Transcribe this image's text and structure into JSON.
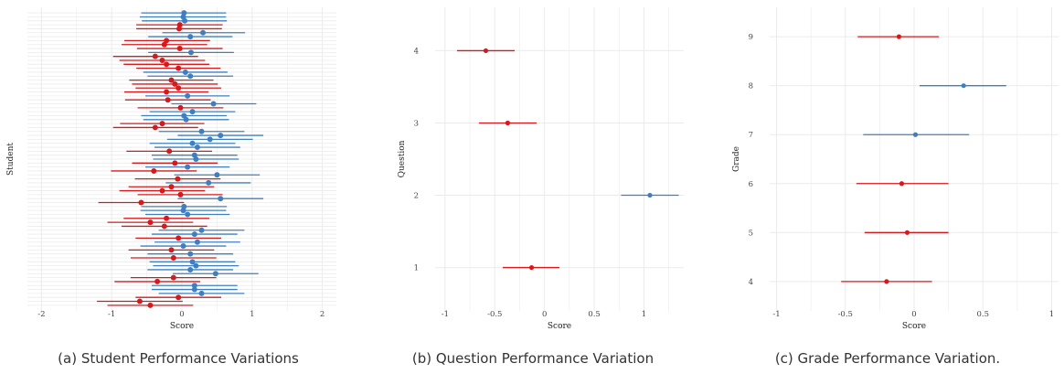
{
  "figures": [
    {
      "id": "a",
      "caption": "(a) Student Performance Variations"
    },
    {
      "id": "b",
      "caption": "(b) Question Performance Variation"
    },
    {
      "id": "c",
      "caption": "(c) Grade Performance Variation."
    }
  ],
  "chart_data": [
    {
      "type": "scatter",
      "subtype": "forest-plot",
      "xlabel": "Score",
      "ylabel": "Student",
      "xlim": [
        -2.2,
        2.2
      ],
      "xticks": [
        "-2",
        "-1",
        "0",
        "1",
        "2"
      ],
      "grid": true,
      "legend": "none",
      "colors": {
        "positive": "#3f7fbf",
        "negative": "#d7191c"
      },
      "points": [
        {
          "y": 1,
          "est": 0.03,
          "lo": -0.58,
          "hi": 0.63
        },
        {
          "y": 2,
          "est": 0.02,
          "lo": -0.6,
          "hi": 0.63
        },
        {
          "y": 3,
          "est": 0.04,
          "lo": -0.57,
          "hi": 0.64
        },
        {
          "y": 4,
          "est": -0.03,
          "lo": -0.65,
          "hi": 0.58
        },
        {
          "y": 5,
          "est": -0.04,
          "lo": -0.65,
          "hi": 0.57
        },
        {
          "y": 6,
          "est": 0.3,
          "lo": -0.28,
          "hi": 0.9
        },
        {
          "y": 7,
          "est": 0.12,
          "lo": -0.48,
          "hi": 0.72
        },
        {
          "y": 8,
          "est": -0.22,
          "lo": -0.82,
          "hi": 0.4
        },
        {
          "y": 9,
          "est": -0.25,
          "lo": -0.86,
          "hi": 0.36
        },
        {
          "y": 10,
          "est": -0.03,
          "lo": -0.64,
          "hi": 0.58
        },
        {
          "y": 11,
          "est": 0.13,
          "lo": -0.48,
          "hi": 0.74
        },
        {
          "y": 12,
          "est": -0.38,
          "lo": -0.98,
          "hi": 0.23
        },
        {
          "y": 13,
          "est": -0.28,
          "lo": -0.89,
          "hi": 0.33
        },
        {
          "y": 14,
          "est": -0.22,
          "lo": -0.83,
          "hi": 0.39
        },
        {
          "y": 15,
          "est": -0.05,
          "lo": -0.65,
          "hi": 0.55
        },
        {
          "y": 16,
          "est": 0.05,
          "lo": -0.55,
          "hi": 0.65
        },
        {
          "y": 17,
          "est": 0.12,
          "lo": -0.49,
          "hi": 0.73
        },
        {
          "y": 18,
          "est": -0.15,
          "lo": -0.75,
          "hi": 0.45
        },
        {
          "y": 19,
          "est": -0.1,
          "lo": -0.71,
          "hi": 0.51
        },
        {
          "y": 20,
          "est": -0.05,
          "lo": -0.66,
          "hi": 0.56
        },
        {
          "y": 21,
          "est": -0.22,
          "lo": -0.82,
          "hi": 0.38
        },
        {
          "y": 22,
          "est": 0.08,
          "lo": -0.52,
          "hi": 0.68
        },
        {
          "y": 23,
          "est": -0.2,
          "lo": -0.81,
          "hi": 0.41
        },
        {
          "y": 24,
          "est": 0.45,
          "lo": -0.15,
          "hi": 1.06
        },
        {
          "y": 25,
          "est": -0.02,
          "lo": -0.63,
          "hi": 0.59
        },
        {
          "y": 26,
          "est": 0.15,
          "lo": -0.46,
          "hi": 0.76
        },
        {
          "y": 27,
          "est": 0.03,
          "lo": -0.58,
          "hi": 0.64
        },
        {
          "y": 28,
          "est": 0.06,
          "lo": -0.55,
          "hi": 0.67
        },
        {
          "y": 29,
          "est": -0.28,
          "lo": -0.88,
          "hi": 0.32
        },
        {
          "y": 30,
          "est": -0.38,
          "lo": -0.98,
          "hi": 0.23
        },
        {
          "y": 31,
          "est": 0.28,
          "lo": -0.33,
          "hi": 0.89
        },
        {
          "y": 32,
          "est": 0.55,
          "lo": -0.06,
          "hi": 1.16
        },
        {
          "y": 33,
          "est": 0.4,
          "lo": -0.21,
          "hi": 1.01
        },
        {
          "y": 34,
          "est": 0.15,
          "lo": -0.46,
          "hi": 0.76
        },
        {
          "y": 35,
          "est": 0.22,
          "lo": -0.39,
          "hi": 0.83
        },
        {
          "y": 36,
          "est": -0.18,
          "lo": -0.79,
          "hi": 0.43
        },
        {
          "y": 37,
          "est": 0.18,
          "lo": -0.43,
          "hi": 0.79
        },
        {
          "y": 38,
          "est": 0.2,
          "lo": -0.41,
          "hi": 0.81
        },
        {
          "y": 39,
          "est": -0.1,
          "lo": -0.71,
          "hi": 0.51
        },
        {
          "y": 40,
          "est": 0.08,
          "lo": -0.52,
          "hi": 0.68
        },
        {
          "y": 41,
          "est": -0.4,
          "lo": -1.01,
          "hi": 0.21
        },
        {
          "y": 42,
          "est": 0.5,
          "lo": -0.11,
          "hi": 1.11
        },
        {
          "y": 43,
          "est": -0.06,
          "lo": -0.67,
          "hi": 0.55
        },
        {
          "y": 44,
          "est": 0.38,
          "lo": -0.23,
          "hi": 0.98
        },
        {
          "y": 45,
          "est": -0.15,
          "lo": -0.76,
          "hi": 0.46
        },
        {
          "y": 46,
          "est": -0.28,
          "lo": -0.89,
          "hi": 0.33
        },
        {
          "y": 47,
          "est": -0.02,
          "lo": -0.63,
          "hi": 0.58
        },
        {
          "y": 48,
          "est": 0.55,
          "lo": -0.06,
          "hi": 1.16
        },
        {
          "y": 49,
          "est": -0.58,
          "lo": -1.19,
          "hi": 0.03
        },
        {
          "y": 50,
          "est": 0.03,
          "lo": -0.58,
          "hi": 0.64
        },
        {
          "y": 51,
          "est": 0.02,
          "lo": -0.59,
          "hi": 0.63
        },
        {
          "y": 52,
          "est": 0.08,
          "lo": -0.52,
          "hi": 0.68
        },
        {
          "y": 53,
          "est": -0.22,
          "lo": -0.83,
          "hi": 0.39
        },
        {
          "y": 54,
          "est": -0.45,
          "lo": -1.06,
          "hi": 0.16
        },
        {
          "y": 55,
          "est": -0.25,
          "lo": -0.86,
          "hi": 0.36
        },
        {
          "y": 56,
          "est": 0.28,
          "lo": -0.33,
          "hi": 0.89
        },
        {
          "y": 57,
          "est": 0.18,
          "lo": -0.43,
          "hi": 0.79
        },
        {
          "y": 58,
          "est": -0.05,
          "lo": -0.66,
          "hi": 0.56
        },
        {
          "y": 59,
          "est": 0.22,
          "lo": -0.39,
          "hi": 0.83
        },
        {
          "y": 60,
          "est": 0.02,
          "lo": -0.59,
          "hi": 0.63
        },
        {
          "y": 61,
          "est": -0.15,
          "lo": -0.76,
          "hi": 0.46
        },
        {
          "y": 62,
          "est": 0.12,
          "lo": -0.49,
          "hi": 0.73
        },
        {
          "y": 63,
          "est": -0.12,
          "lo": -0.73,
          "hi": 0.49
        },
        {
          "y": 64,
          "est": 0.15,
          "lo": -0.46,
          "hi": 0.76
        },
        {
          "y": 65,
          "est": 0.2,
          "lo": -0.41,
          "hi": 0.81
        },
        {
          "y": 66,
          "est": 0.12,
          "lo": -0.49,
          "hi": 0.73
        },
        {
          "y": 67,
          "est": 0.48,
          "lo": -0.13,
          "hi": 1.09
        },
        {
          "y": 68,
          "est": -0.12,
          "lo": -0.73,
          "hi": 0.49
        },
        {
          "y": 69,
          "est": -0.35,
          "lo": -0.96,
          "hi": 0.26
        },
        {
          "y": 70,
          "est": 0.18,
          "lo": -0.43,
          "hi": 0.79
        },
        {
          "y": 71,
          "est": 0.18,
          "lo": -0.43,
          "hi": 0.79
        },
        {
          "y": 72,
          "est": 0.28,
          "lo": -0.33,
          "hi": 0.89
        },
        {
          "y": 73,
          "est": -0.05,
          "lo": -0.66,
          "hi": 0.56
        },
        {
          "y": 74,
          "est": -0.6,
          "lo": -1.21,
          "hi": 0.01
        },
        {
          "y": 75,
          "est": -0.45,
          "lo": -1.06,
          "hi": 0.16
        }
      ]
    },
    {
      "type": "scatter",
      "subtype": "forest-plot",
      "xlabel": "Score",
      "ylabel": "Question",
      "xlim": [
        -1.1,
        1.4
      ],
      "xticks": [
        "-1",
        "-0.5",
        "0",
        "0.5",
        "1"
      ],
      "yticks": [
        "1",
        "2",
        "3",
        "4"
      ],
      "grid": true,
      "legend": "none",
      "colors": {
        "positive": "#3f7fbf",
        "negative": "#d7191c"
      },
      "points": [
        {
          "y": 1,
          "est": -0.13,
          "lo": -0.42,
          "hi": 0.15
        },
        {
          "y": 2,
          "est": 1.06,
          "lo": 0.77,
          "hi": 1.35
        },
        {
          "y": 3,
          "est": -0.37,
          "lo": -0.66,
          "hi": -0.08
        },
        {
          "y": 4,
          "est": -0.59,
          "lo": -0.88,
          "hi": -0.3
        }
      ]
    },
    {
      "type": "scatter",
      "subtype": "forest-plot",
      "xlabel": "Score",
      "ylabel": "Grade",
      "xlim": [
        -1.05,
        1.05
      ],
      "xticks": [
        "-1",
        "-0.5",
        "0",
        "0.5",
        "1"
      ],
      "yticks": [
        "4",
        "5",
        "6",
        "7",
        "8",
        "9"
      ],
      "grid": true,
      "legend": "none",
      "colors": {
        "positive": "#3f7fbf",
        "negative": "#d7191c"
      },
      "points": [
        {
          "y": 4,
          "est": -0.2,
          "lo": -0.53,
          "hi": 0.13
        },
        {
          "y": 5,
          "est": -0.05,
          "lo": -0.36,
          "hi": 0.25
        },
        {
          "y": 6,
          "est": -0.09,
          "lo": -0.42,
          "hi": 0.25
        },
        {
          "y": 7,
          "est": 0.01,
          "lo": -0.37,
          "hi": 0.4
        },
        {
          "y": 8,
          "est": 0.36,
          "lo": 0.04,
          "hi": 0.67
        },
        {
          "y": 9,
          "est": -0.11,
          "lo": -0.41,
          "hi": 0.18
        }
      ]
    }
  ]
}
